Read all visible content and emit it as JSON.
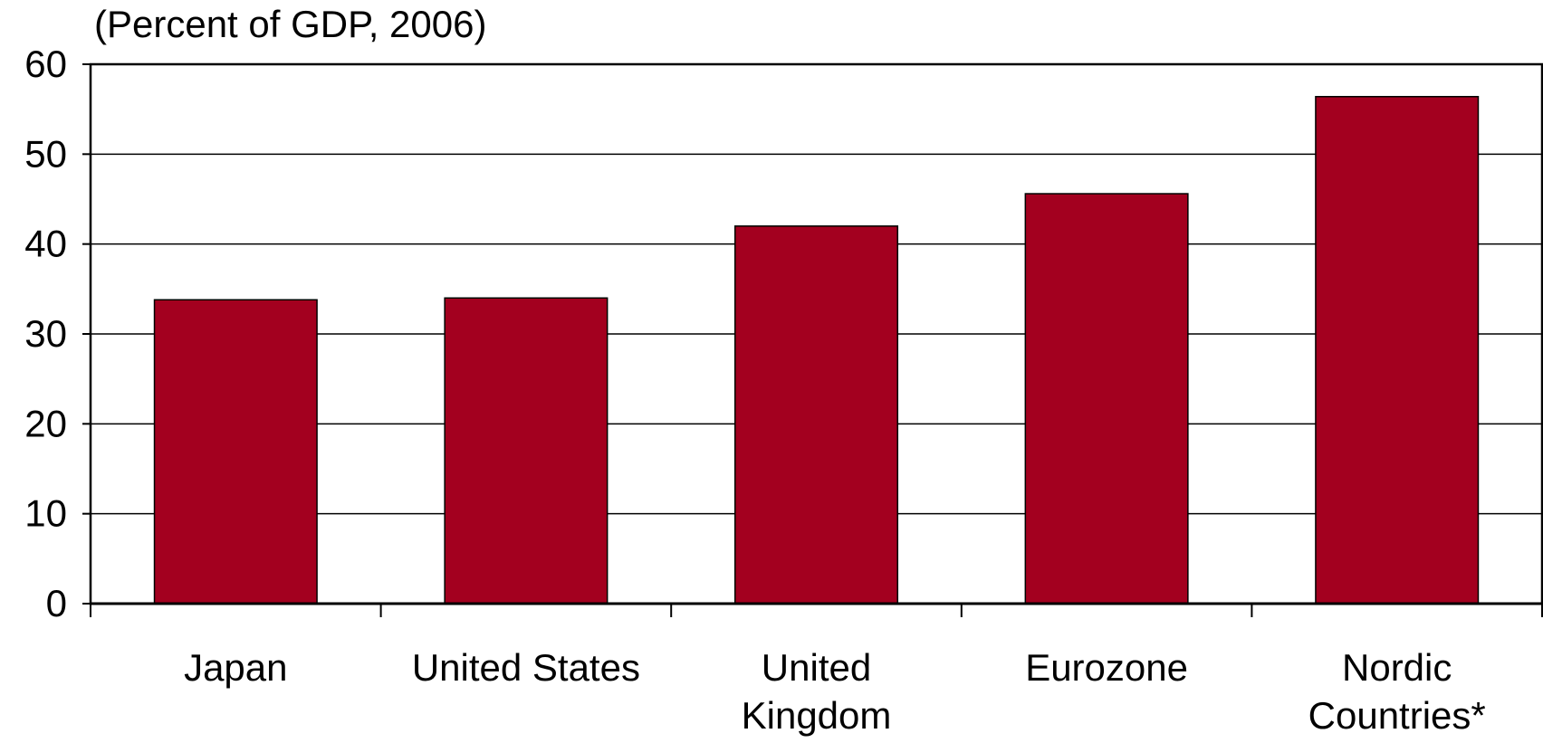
{
  "chart_data": {
    "type": "bar",
    "subtitle": "(Percent of GDP, 2006)",
    "xlabel": "",
    "ylabel": "",
    "categories": [
      [
        "Japan"
      ],
      [
        "United States"
      ],
      [
        "United",
        "Kingdom"
      ],
      [
        "Eurozone"
      ],
      [
        "Nordic",
        "Countries*"
      ]
    ],
    "values": [
      33.8,
      34.0,
      42.0,
      45.6,
      56.4
    ],
    "ylim": [
      0,
      60
    ],
    "yticks": [
      0,
      10,
      20,
      30,
      40,
      50,
      60
    ],
    "grid": true,
    "legend": "none",
    "bar_color": "#A3001F",
    "bar_edge_color": "#000000",
    "grid_color": "#000000"
  }
}
